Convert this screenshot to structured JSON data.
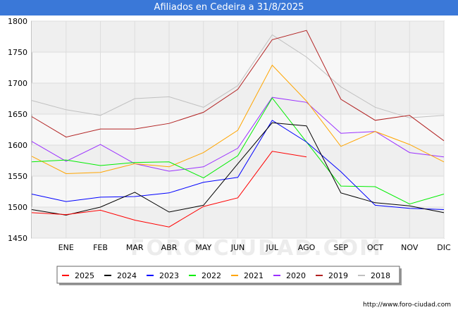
{
  "title": "Afiliados en Cedeira a 31/8/2025",
  "watermark": "FORO-CIUDAD.COM",
  "source": "http://www.foro-ciudad.com",
  "chart_data": {
    "type": "line",
    "categories": [
      "",
      "ENE",
      "FEB",
      "MAR",
      "ABR",
      "MAY",
      "JUN",
      "JUL",
      "AGO",
      "SEP",
      "OCT",
      "NOV",
      "DIC"
    ],
    "ylim": [
      1450,
      1800
    ],
    "yticks": [
      1450,
      1500,
      1550,
      1600,
      1650,
      1700,
      1750,
      1800
    ],
    "grid": true,
    "legend_position": "bottom",
    "series": [
      {
        "name": "2025",
        "color": "#ff0000",
        "values": [
          1491,
          1488,
          1495,
          1479,
          1468,
          1501,
          1515,
          1590,
          1581,
          null,
          null,
          null,
          null
        ]
      },
      {
        "name": "2024",
        "color": "#000000",
        "values": [
          1496,
          1487,
          1500,
          1524,
          1492,
          1503,
          1570,
          1636,
          1631,
          1523,
          1507,
          1502,
          1491
        ]
      },
      {
        "name": "2023",
        "color": "#0000ff",
        "values": [
          1521,
          1509,
          1516,
          1517,
          1523,
          1540,
          1548,
          1640,
          1605,
          1557,
          1503,
          1498,
          1496
        ]
      },
      {
        "name": "2022",
        "color": "#00ee00",
        "values": [
          1573,
          1576,
          1567,
          1572,
          1573,
          1547,
          1583,
          1676,
          1605,
          1534,
          1533,
          1505,
          1521
        ]
      },
      {
        "name": "2021",
        "color": "#ffa500",
        "values": [
          1582,
          1554,
          1556,
          1570,
          1565,
          1588,
          1624,
          1729,
          1671,
          1598,
          1622,
          1601,
          1573
        ]
      },
      {
        "name": "2020",
        "color": "#9b30ff",
        "values": [
          1606,
          1574,
          1601,
          1570,
          1558,
          1565,
          1595,
          1677,
          1669,
          1619,
          1622,
          1588,
          1581
        ]
      },
      {
        "name": "2019",
        "color": "#b22222",
        "values": [
          1646,
          1613,
          1626,
          1626,
          1635,
          1653,
          1690,
          1770,
          1785,
          1674,
          1640,
          1648,
          1607
        ]
      },
      {
        "name": "2018",
        "color": "#c0c0c0",
        "values": [
          1672,
          1657,
          1648,
          1675,
          1678,
          1661,
          1696,
          1778,
          1742,
          1694,
          1661,
          1644,
          1648
        ]
      }
    ]
  }
}
